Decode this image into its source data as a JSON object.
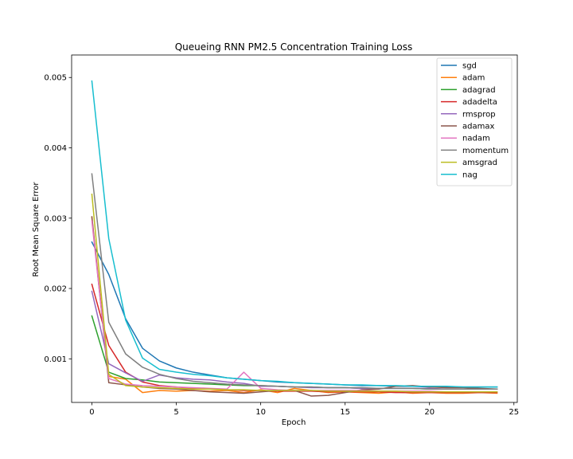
{
  "chart_data": {
    "type": "line",
    "title": "Queueing RNN PM2.5 Concentration Training Loss",
    "xlabel": "Epoch",
    "ylabel": "Root Mean Square Error",
    "xlim": [
      -1.2,
      25.2
    ],
    "ylim": [
      0.00038,
      0.00532
    ],
    "xticks": [
      0,
      5,
      10,
      15,
      20,
      25
    ],
    "yticks": [
      0.001,
      0.002,
      0.003,
      0.004,
      0.005
    ],
    "ytick_labels": [
      "0.001",
      "0.002",
      "0.003",
      "0.004",
      "0.005"
    ],
    "grid": false,
    "legend_position": "top-right",
    "x": [
      0,
      1,
      2,
      3,
      4,
      5,
      6,
      7,
      8,
      9,
      10,
      11,
      12,
      13,
      14,
      15,
      16,
      17,
      18,
      19,
      20,
      21,
      22,
      23,
      24
    ],
    "series": [
      {
        "name": "sgd",
        "color": "#1f77b4",
        "values": [
          0.00266,
          0.0022,
          0.00157,
          0.00115,
          0.00097,
          0.00087,
          0.00081,
          0.00077,
          0.00073,
          0.00071,
          0.00069,
          0.00067,
          0.00066,
          0.00065,
          0.00064,
          0.00063,
          0.00062,
          0.00062,
          0.00061,
          0.00061,
          0.0006,
          0.0006,
          0.0006,
          0.0006,
          0.0006
        ]
      },
      {
        "name": "adam",
        "color": "#ff7f0e",
        "values": [
          0.00301,
          0.00075,
          0.00071,
          0.00052,
          0.00055,
          0.00054,
          0.00055,
          0.00054,
          0.00055,
          0.00052,
          0.00056,
          0.00052,
          0.00058,
          0.00055,
          0.00052,
          0.00053,
          0.00052,
          0.00051,
          0.00053,
          0.00051,
          0.00052,
          0.00051,
          0.00051,
          0.00052,
          0.00051
        ]
      },
      {
        "name": "adagrad",
        "color": "#2ca02c",
        "values": [
          0.00161,
          0.00081,
          0.00072,
          0.0007,
          0.00067,
          0.00066,
          0.00065,
          0.00064,
          0.00063,
          0.00062,
          0.00062,
          0.00061,
          0.0006,
          0.0006,
          0.00059,
          0.00059,
          0.00058,
          0.00058,
          0.00058,
          0.00058,
          0.00057,
          0.00057,
          0.00057,
          0.00057,
          0.00057
        ]
      },
      {
        "name": "adadelta",
        "color": "#d62728",
        "values": [
          0.00206,
          0.00119,
          0.00081,
          0.00067,
          0.00062,
          0.0006,
          0.00058,
          0.00057,
          0.00056,
          0.00055,
          0.00055,
          0.00054,
          0.00054,
          0.00054,
          0.00053,
          0.00053,
          0.00053,
          0.00053,
          0.00052,
          0.00052,
          0.00052,
          0.00052,
          0.00052,
          0.00052,
          0.00052
        ]
      },
      {
        "name": "rmsprop",
        "color": "#9467bd",
        "values": [
          0.00196,
          0.00093,
          0.0008,
          0.00068,
          0.00077,
          0.00073,
          0.00071,
          0.0007,
          0.00067,
          0.00065,
          0.00061,
          0.00061,
          0.0006,
          0.00059,
          0.00059,
          0.00059,
          0.00058,
          0.00058,
          0.00058,
          0.00058,
          0.00058,
          0.00057,
          0.00057,
          0.00057,
          0.00057
        ]
      },
      {
        "name": "adamax",
        "color": "#8c564b",
        "values": [
          0.00302,
          0.00066,
          0.00063,
          0.0006,
          0.00058,
          0.00057,
          0.00055,
          0.00053,
          0.00052,
          0.00051,
          0.00053,
          0.00055,
          0.00055,
          0.00047,
          0.00048,
          0.00052,
          0.00056,
          0.00057,
          0.00061,
          0.00062,
          0.0006,
          0.00059,
          0.00059,
          0.00058,
          0.00057
        ]
      },
      {
        "name": "nadam",
        "color": "#e377c2",
        "values": [
          0.00296,
          0.00072,
          0.00064,
          0.00062,
          0.00061,
          0.0006,
          0.00059,
          0.00058,
          0.00057,
          0.00081,
          0.00058,
          0.00056,
          0.00055,
          0.00055,
          0.00055,
          0.00055,
          0.00055,
          0.00054,
          0.00054,
          0.00054,
          0.00054,
          0.00053,
          0.00053,
          0.00053,
          0.00053
        ]
      },
      {
        "name": "momentum",
        "color": "#7f7f7f",
        "values": [
          0.00363,
          0.00152,
          0.00107,
          0.00088,
          0.00078,
          0.00072,
          0.00068,
          0.00066,
          0.00064,
          0.00063,
          0.00062,
          0.00061,
          0.0006,
          0.0006,
          0.00059,
          0.00059,
          0.00059,
          0.00058,
          0.00058,
          0.00058,
          0.00057,
          0.00057,
          0.00057,
          0.00057,
          0.00057
        ]
      },
      {
        "name": "amsgrad",
        "color": "#bcbd22",
        "values": [
          0.00334,
          0.00078,
          0.00062,
          0.0006,
          0.00059,
          0.00058,
          0.00057,
          0.00057,
          0.00056,
          0.00056,
          0.00055,
          0.00055,
          0.00055,
          0.00055,
          0.00054,
          0.00054,
          0.00054,
          0.00054,
          0.00054,
          0.00053,
          0.00053,
          0.00053,
          0.00053,
          0.00053,
          0.00053
        ]
      },
      {
        "name": "nag",
        "color": "#17becf",
        "values": [
          0.00495,
          0.00271,
          0.00155,
          0.00101,
          0.00085,
          0.00081,
          0.00078,
          0.00076,
          0.00073,
          0.00071,
          0.00069,
          0.00068,
          0.00066,
          0.00065,
          0.00064,
          0.00063,
          0.00063,
          0.00062,
          0.00062,
          0.00061,
          0.00061,
          0.00061,
          0.0006,
          0.0006,
          0.0006
        ]
      }
    ]
  }
}
